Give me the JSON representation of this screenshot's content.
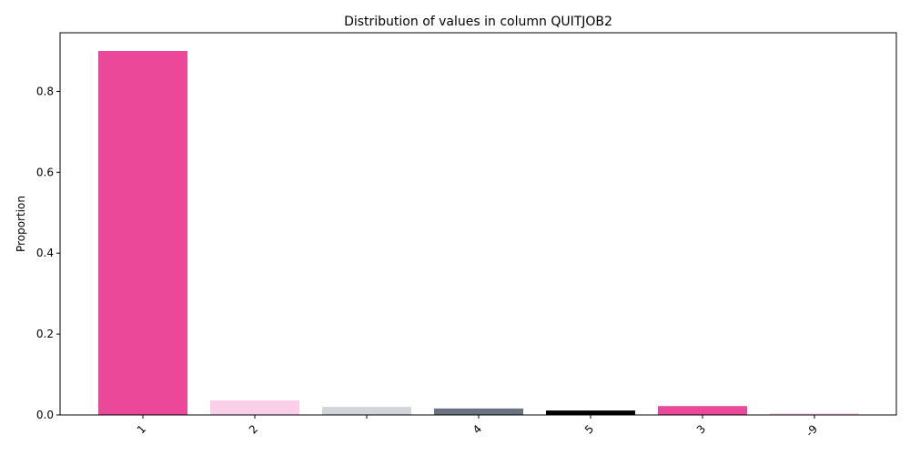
{
  "chart_data": {
    "type": "bar",
    "title": "Distribution of values in column QUITJOB2",
    "xlabel": "",
    "ylabel": "Proportion",
    "ylim": [
      0,
      0.945
    ],
    "yticks": [
      "0.0",
      "0.2",
      "0.4",
      "0.6",
      "0.8"
    ],
    "grid": false,
    "categories": [
      "1",
      "2",
      "",
      "4",
      "5",
      "3",
      "-9"
    ],
    "values": [
      0.9,
      0.036,
      0.02,
      0.016,
      0.011,
      0.022,
      0.004
    ],
    "colors": [
      "#ec4899",
      "#fbcfe8",
      "#d1d5db",
      "#6b7280",
      "#000000",
      "#ec4899",
      "#fbcfe8"
    ]
  }
}
